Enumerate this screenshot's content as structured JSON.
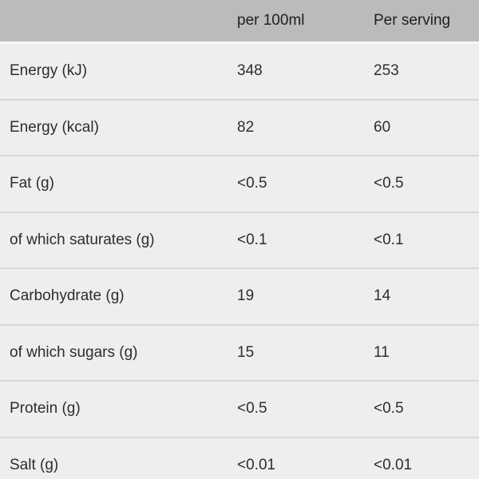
{
  "colors": {
    "header_background": "#bcbbbb",
    "body_background": "#efeeee",
    "divider": "#d8d7d7",
    "text": "#2d2d2d",
    "header_text": "#1f1f1f"
  },
  "table": {
    "columns": [
      "",
      "per 100ml",
      "Per serving"
    ],
    "rows": [
      {
        "label": "Energy (kJ)",
        "per_100ml": "348",
        "per_serving": "253"
      },
      {
        "label": "Energy (kcal)",
        "per_100ml": "82",
        "per_serving": "60"
      },
      {
        "label": "Fat (g)",
        "per_100ml": "<0.5",
        "per_serving": "<0.5"
      },
      {
        "label": "of which saturates (g)",
        "per_100ml": "<0.1",
        "per_serving": "<0.1"
      },
      {
        "label": "Carbohydrate (g)",
        "per_100ml": "19",
        "per_serving": "14"
      },
      {
        "label": "of which sugars (g)",
        "per_100ml": "15",
        "per_serving": "11"
      },
      {
        "label": "Protein (g)",
        "per_100ml": "<0.5",
        "per_serving": "<0.5"
      },
      {
        "label": "Salt (g)",
        "per_100ml": "<0.01",
        "per_serving": "<0.01"
      }
    ]
  },
  "chart_data": {
    "type": "table",
    "title": "",
    "columns": [
      "",
      "per 100ml",
      "Per serving"
    ],
    "rows": [
      [
        "Energy (kJ)",
        "348",
        "253"
      ],
      [
        "Energy (kcal)",
        "82",
        "60"
      ],
      [
        "Fat (g)",
        "<0.5",
        "<0.5"
      ],
      [
        "of which saturates (g)",
        "<0.1",
        "<0.1"
      ],
      [
        "Carbohydrate (g)",
        "19",
        "14"
      ],
      [
        "of which sugars (g)",
        "15",
        "11"
      ],
      [
        "Protein (g)",
        "<0.5",
        "<0.5"
      ],
      [
        "Salt (g)",
        "<0.01",
        "<0.01"
      ]
    ]
  }
}
